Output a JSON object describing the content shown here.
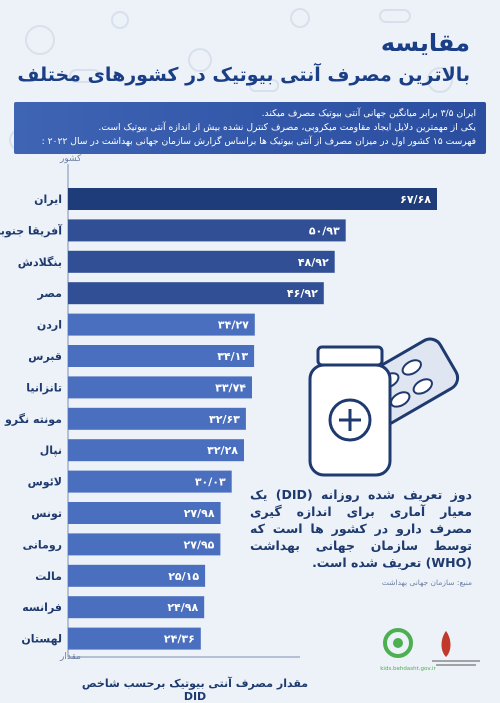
{
  "title": {
    "main": "مقایسه",
    "sub": "بالاترین مصرف آنتی بیوتیک در کشورهای مختلف"
  },
  "info": {
    "line1": "ایران ۳/۵ برابر میانگین جهانی آنتی بیوتیک مصرف میکند.",
    "line2": "یکی از مهمترین دلایل ایجاد مقاومت میکروبی، مصرف کنترل نشده بیش از اندازه آنتی بیوتیک است.",
    "line3": "فهرست ۱۵ کشور اول در میزان مصرف از آنتی بیوتیک ها براساس گزارش سازمان جهانی بهداشت در سال ۲۰۲۲ :"
  },
  "chart_data": {
    "type": "bar",
    "orientation": "horizontal",
    "category_axis_label": "کشور",
    "value_axis_label": "مقدار",
    "caption": "مقدار مصرف آنتی بیوتیک برحسب شاخص DID",
    "categories": [
      "ایران",
      "آفریقا جنوبی",
      "بنگلادش",
      "مصر",
      "اردن",
      "قبرس",
      "تانزانیا",
      "مونته نگرو",
      "نپال",
      "لائوس",
      "تونس",
      "رومانی",
      "مالت",
      "فرانسه",
      "لهستان"
    ],
    "values": [
      67.68,
      50.93,
      48.92,
      46.92,
      34.27,
      34.13,
      33.74,
      32.63,
      32.28,
      30.03,
      27.98,
      27.95,
      25.15,
      24.98,
      24.36
    ],
    "value_labels": [
      "۶۷/۶۸",
      "۵۰/۹۳",
      "۴۸/۹۲",
      "۴۶/۹۲",
      "۳۴/۲۷",
      "۳۴/۱۳",
      "۳۳/۷۴",
      "۳۲/۶۳",
      "۳۲/۲۸",
      "۳۰/۰۳",
      "۲۷/۹۸",
      "۲۷/۹۵",
      "۲۵/۱۵",
      "۲۴/۹۸",
      "۲۴/۳۶"
    ],
    "colors": {
      "top_bar": "#1f3c7a",
      "mid_bars": "#304f95",
      "low_bars": "#4a6fbf"
    }
  },
  "note": {
    "text": "دوز تعریف شده روزانه (DID) یک معیار آماری برای اندازه گیری مصرف دارو در کشور ها است که توسط سازمان جهانی بهداشت (WHO) تعریف شده است.",
    "source": "منبع: سازمان جهانی بهداشت"
  },
  "logos": {
    "green_logo_label": "kids.behdasht.gov.ir"
  }
}
